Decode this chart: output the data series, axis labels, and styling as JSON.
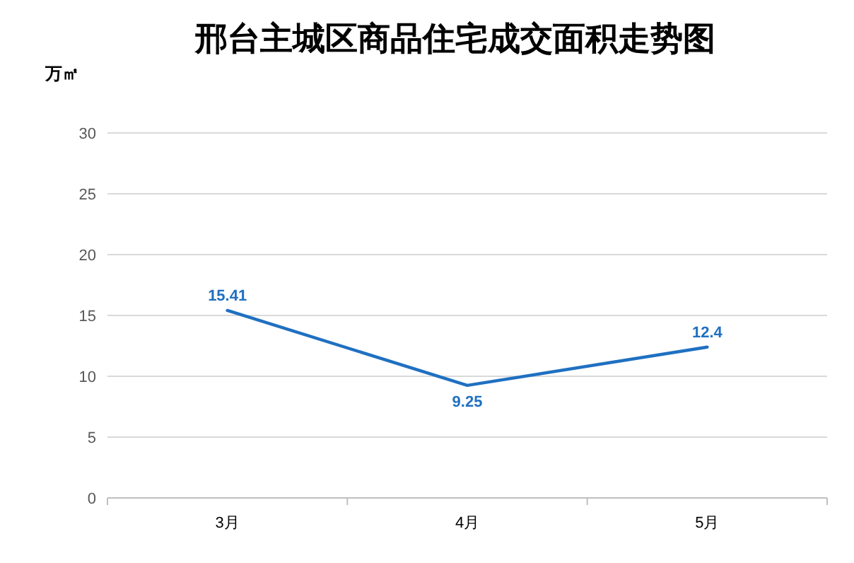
{
  "chart_data": {
    "type": "line",
    "title": "邢台主城区商品住宅成交面积走势图",
    "ylabel": "万㎡",
    "categories": [
      "3月",
      "4月",
      "5月"
    ],
    "series": [
      {
        "color": "#1f70c1",
        "values": [
          15.41,
          9.25,
          12.4
        ]
      }
    ],
    "data_labels": true,
    "ylim": [
      0,
      30
    ],
    "yticks": [
      0,
      5,
      10,
      15,
      20,
      25,
      30
    ],
    "grid": "y",
    "marker": "none",
    "line_style": "solid"
  }
}
